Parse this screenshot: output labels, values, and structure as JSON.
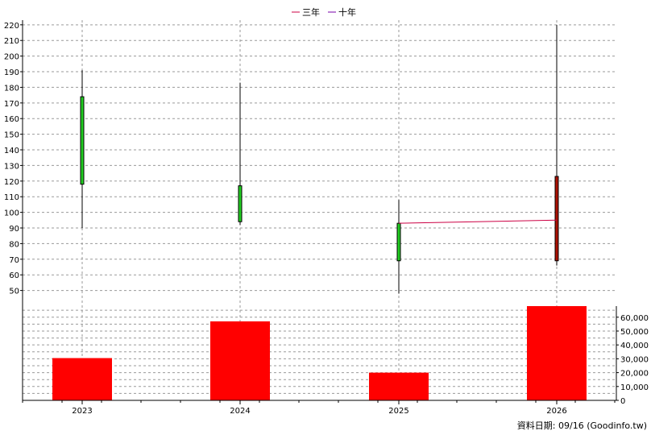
{
  "legend": [
    {
      "label": "三年",
      "color": "#cc0044"
    },
    {
      "label": "十年",
      "color": "#7700aa"
    }
  ],
  "footer": "資料日期: 09/16  (Goodinfo.tw)",
  "chart_data": {
    "type": "candlestick",
    "categories": [
      "2023",
      "2024",
      "2025",
      "2026"
    ],
    "price_axis": {
      "ylim": [
        40,
        223
      ],
      "ticks": [
        50,
        60,
        70,
        80,
        90,
        100,
        110,
        120,
        130,
        140,
        150,
        160,
        170,
        180,
        190,
        200,
        210,
        220
      ]
    },
    "candles": [
      {
        "year": "2023",
        "open": 118,
        "close": 174,
        "high": 191,
        "low": 90,
        "color": "#22cc22"
      },
      {
        "year": "2024",
        "open": 94,
        "close": 117,
        "high": 183,
        "low": 92,
        "color": "#22cc22"
      },
      {
        "year": "2025",
        "open": 69,
        "close": 93,
        "high": 108,
        "low": 48,
        "color": "#22cc22"
      },
      {
        "year": "2026",
        "open": 123,
        "close": 69,
        "high": 220,
        "low": 66,
        "color": "#aa1100"
      }
    ],
    "lines": [
      {
        "name": "三年",
        "color": "#cc0044",
        "points": [
          [
            "2025",
            93
          ],
          [
            "2026",
            95
          ]
        ]
      }
    ],
    "volume_axis": {
      "ylim": [
        0,
        68000
      ],
      "ticks": [
        0,
        10000,
        20000,
        30000,
        40000,
        50000,
        60000
      ],
      "tick_labels": [
        "0",
        "10,000",
        "20,000",
        "30,000",
        "40,000",
        "50,000",
        "60,000"
      ]
    },
    "volume": [
      30500,
      57000,
      20000,
      68000
    ],
    "volume_color": "#ff0000"
  }
}
